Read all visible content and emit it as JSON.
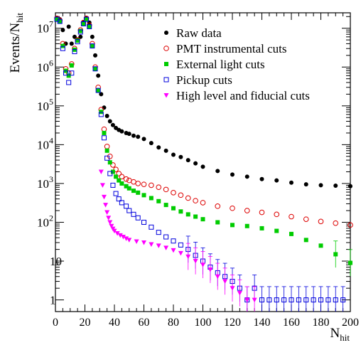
{
  "chart_data": {
    "type": "scatter",
    "title": "",
    "xlabel": {
      "base": "N",
      "sub": "hit"
    },
    "ylabel": {
      "base": "Events/N",
      "sub": "hit"
    },
    "x_range": [
      0,
      200
    ],
    "y_range": [
      0.5,
      25000000
    ],
    "y_scale": "log",
    "x_ticks": [
      0,
      20,
      40,
      60,
      80,
      100,
      120,
      140,
      160,
      180,
      200
    ],
    "x_tick_labels": [
      "0",
      "20",
      "40",
      "60",
      "80",
      "100",
      "120",
      "140",
      "160",
      "180",
      "200"
    ],
    "y_ticks": [
      {
        "value": 1,
        "base": "1",
        "exp": ""
      },
      {
        "value": 10,
        "base": "10",
        "exp": ""
      },
      {
        "value": 100,
        "base": "10",
        "exp": "2"
      },
      {
        "value": 1000,
        "base": "10",
        "exp": "3"
      },
      {
        "value": 10000,
        "base": "10",
        "exp": "4"
      },
      {
        "value": 100000,
        "base": "10",
        "exp": "5"
      },
      {
        "value": 1000000,
        "base": "10",
        "exp": "6"
      },
      {
        "value": 10000000,
        "base": "10",
        "exp": "7"
      }
    ],
    "grid": false,
    "legend_position": "top-right",
    "series": [
      {
        "name": "Raw data",
        "color": "#000000",
        "marker": "filled-circle",
        "x": [
          1,
          3,
          5,
          7,
          9,
          11,
          13,
          15,
          17,
          19,
          21,
          23,
          25,
          27,
          29,
          31,
          33,
          35,
          37,
          39,
          41,
          43,
          45,
          48,
          50,
          53,
          56,
          60,
          65,
          70,
          75,
          80,
          85,
          90,
          95,
          100,
          110,
          120,
          130,
          140,
          150,
          160,
          170,
          180,
          190,
          200
        ],
        "y": [
          18000000,
          17000000,
          9000000,
          4000000,
          11000000,
          4000000,
          6000000,
          5000000,
          6000000,
          14000000,
          18000000,
          14000000,
          6000000,
          2000000,
          600000,
          200000,
          90000,
          55000,
          40000,
          32000,
          27000,
          24000,
          22000,
          20000,
          19000,
          17000,
          16000,
          14000,
          11000,
          8500,
          7000,
          5500,
          4800,
          4000,
          3300,
          2700,
          2100,
          1700,
          1500,
          1300,
          1200,
          1050,
          950,
          900,
          880,
          850
        ]
      },
      {
        "name": "PMT instrumental cuts",
        "color": "#dd0000",
        "marker": "open-circle",
        "x": [
          1,
          3,
          5,
          7,
          9,
          11,
          13,
          15,
          17,
          19,
          21,
          23,
          25,
          27,
          29,
          31,
          33,
          35,
          37,
          39,
          41,
          43,
          45,
          48,
          50,
          53,
          56,
          60,
          65,
          70,
          75,
          80,
          85,
          90,
          95,
          100,
          110,
          120,
          130,
          140,
          150,
          160,
          170,
          180,
          190,
          200
        ],
        "y": [
          18000000,
          16000000,
          4000000,
          900000,
          700000,
          1200000,
          3000000,
          5000000,
          9000000,
          14000000,
          18000000,
          12000000,
          4000000,
          1000000,
          300000,
          80000,
          25000,
          9000,
          5000,
          3000,
          2300,
          1800,
          1500,
          1300,
          1200,
          1100,
          1000,
          950,
          900,
          800,
          700,
          580,
          500,
          420,
          360,
          320,
          260,
          230,
          200,
          180,
          160,
          140,
          120,
          105,
          95,
          85
        ]
      },
      {
        "name": "External light cuts",
        "color": "#00cc00",
        "marker": "filled-square",
        "x": [
          1,
          3,
          5,
          7,
          9,
          11,
          13,
          15,
          17,
          19,
          21,
          23,
          25,
          27,
          29,
          31,
          33,
          35,
          37,
          39,
          41,
          43,
          45,
          48,
          50,
          53,
          56,
          60,
          65,
          70,
          75,
          80,
          85,
          90,
          95,
          100,
          110,
          120,
          130,
          140,
          150,
          160,
          170,
          180,
          190,
          200
        ],
        "y": [
          17000000,
          15000000,
          3500000,
          800000,
          600000,
          1100000,
          2800000,
          4800000,
          8500000,
          13000000,
          17000000,
          11000000,
          3500000,
          900000,
          250000,
          70000,
          20000,
          7000,
          3500,
          2000,
          1500,
          1200,
          1000,
          850,
          750,
          650,
          580,
          500,
          420,
          350,
          280,
          230,
          190,
          160,
          140,
          120,
          100,
          85,
          80,
          70,
          60,
          50,
          35,
          25,
          15,
          9
        ]
      },
      {
        "name": "Pickup cuts",
        "color": "#0000dd",
        "marker": "open-square",
        "x": [
          1,
          3,
          5,
          7,
          9,
          11,
          13,
          15,
          17,
          19,
          21,
          23,
          25,
          27,
          29,
          31,
          33,
          35,
          37,
          39,
          41,
          43,
          45,
          48,
          50,
          53,
          56,
          60,
          65,
          70,
          75,
          80,
          85,
          90,
          95,
          100,
          105,
          110,
          115,
          120,
          125,
          130,
          135,
          140,
          145,
          150,
          155,
          160,
          165,
          170,
          175,
          180,
          185,
          190,
          195
        ],
        "y": [
          17000000,
          15000000,
          3000000,
          700000,
          400000,
          700000,
          2500000,
          4500000,
          8000000,
          13000000,
          17000000,
          11000000,
          3500000,
          900000,
          250000,
          60000,
          15000,
          4500,
          1800,
          900,
          550,
          400,
          320,
          260,
          200,
          160,
          130,
          100,
          75,
          55,
          42,
          33,
          26,
          20,
          14,
          10,
          7,
          5,
          4,
          3,
          2,
          1,
          2,
          1,
          1,
          1,
          1,
          1,
          1,
          1,
          1,
          1,
          1,
          1,
          1
        ]
      },
      {
        "name": "High level and fiducial cuts",
        "color": "#ff00ff",
        "marker": "filled-triangle-down",
        "x": [
          31,
          32,
          33,
          34,
          35,
          36,
          37,
          38,
          39,
          40,
          42,
          44,
          46,
          48,
          50,
          55,
          60,
          65,
          70,
          75,
          80,
          85,
          90,
          95,
          100,
          105,
          110,
          115,
          120,
          125,
          130,
          135
        ],
        "y": [
          2000,
          900,
          450,
          280,
          180,
          130,
          100,
          80,
          68,
          60,
          52,
          46,
          42,
          38,
          35,
          32,
          30,
          27,
          25,
          22,
          19,
          16,
          13,
          10,
          8,
          6,
          4,
          3,
          2,
          1.5,
          1,
          1
        ]
      }
    ]
  }
}
